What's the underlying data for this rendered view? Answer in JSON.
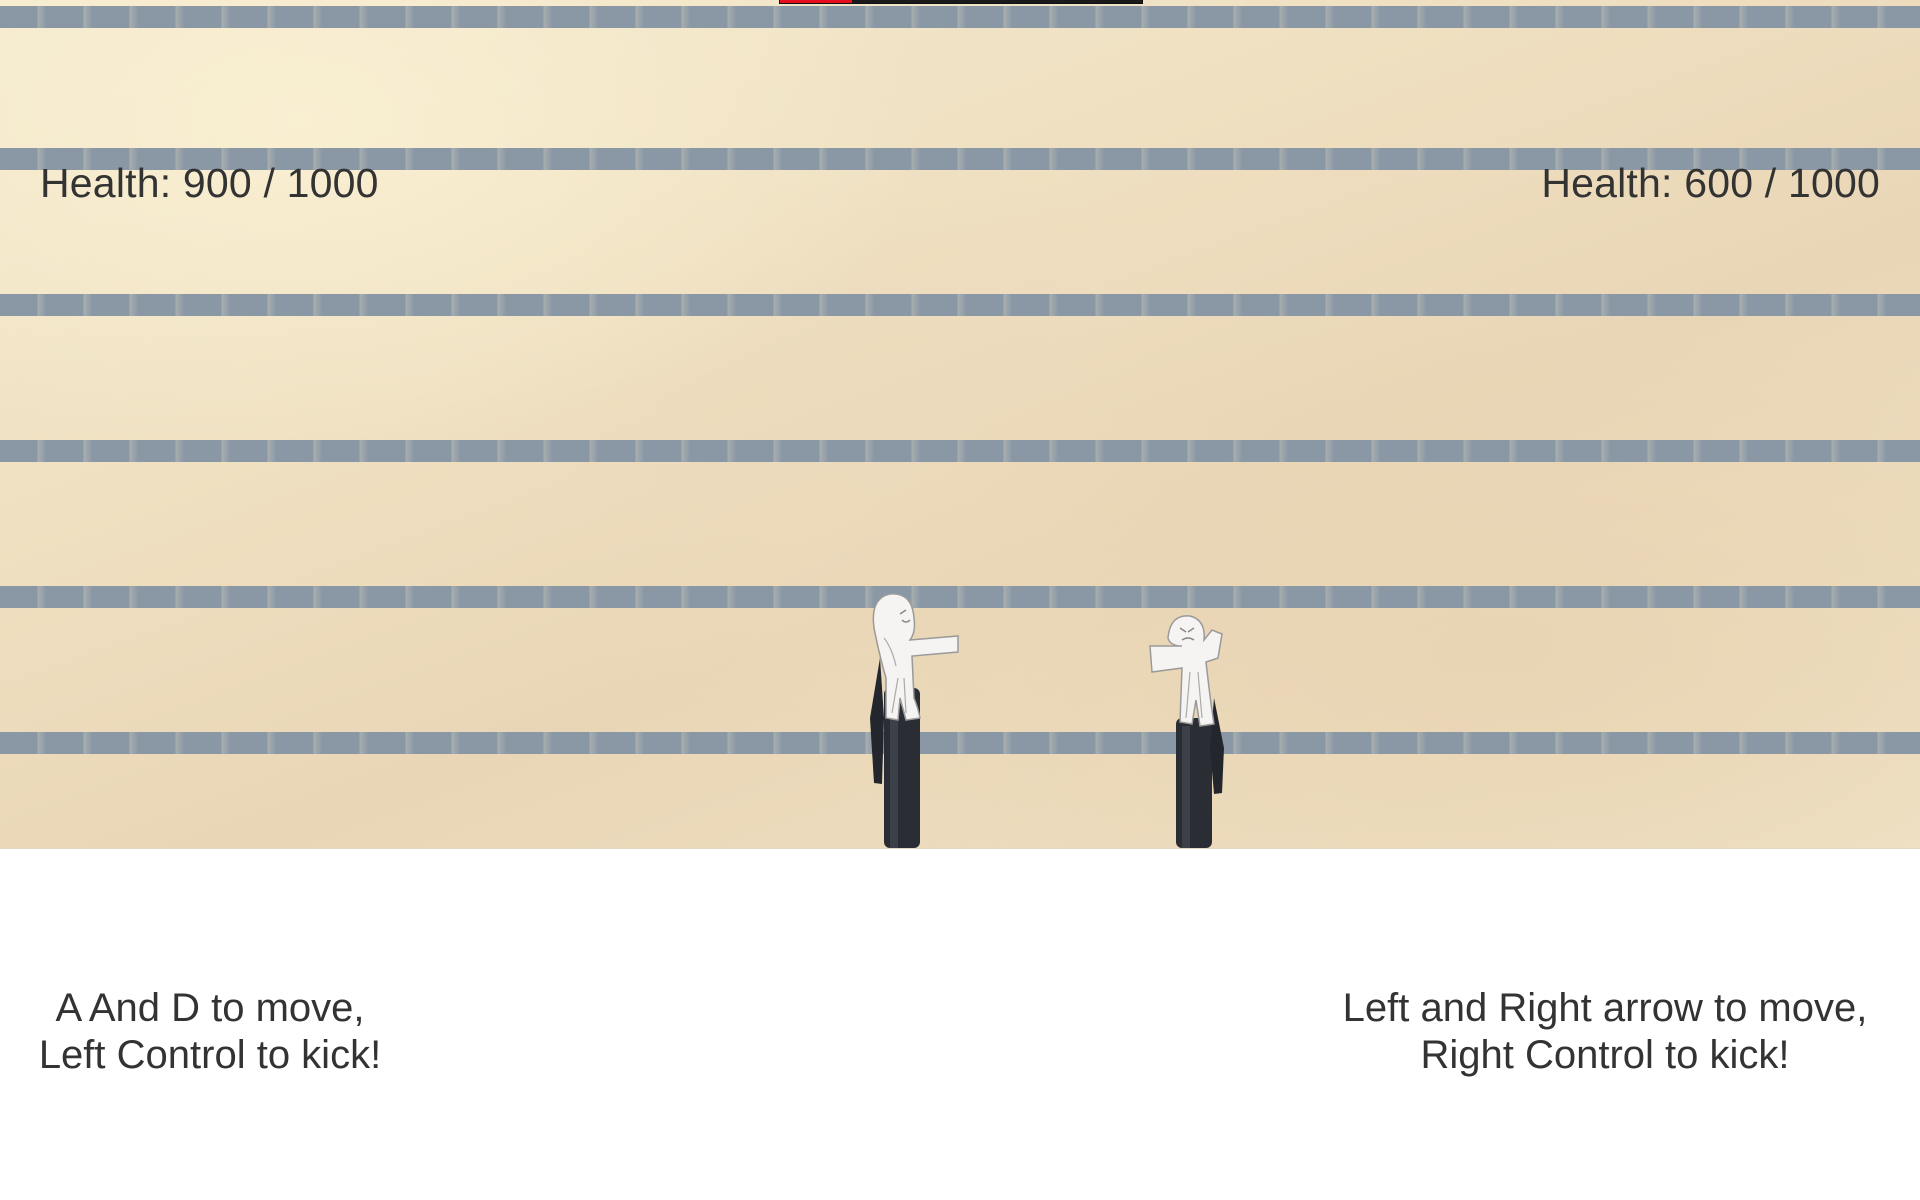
{
  "hud": {
    "player1_health_text": "Health: 900 / 1000",
    "player2_health_text": "Health: 600 / 1000",
    "player1_health": 900,
    "player2_health": 600,
    "max_health": 1000,
    "top_bar_fill_fraction": 0.2,
    "top_bar_fill_color": "#e60e1e",
    "top_bar_track_color": "#1a1a1a"
  },
  "instructions": {
    "player1": {
      "line1": "A And D to move,",
      "line2": "Left Control to kick!"
    },
    "player2": {
      "line1": "Left and Right arrow to move,",
      "line2": "Right Control to kick!"
    }
  },
  "colors": {
    "stripe": "#8a98a6",
    "text": "#333333",
    "pen": "#2a2d33"
  }
}
